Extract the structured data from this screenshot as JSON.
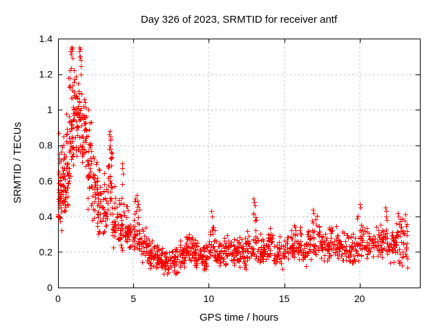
{
  "window": {
    "background": "#ffffff"
  },
  "chart_data": {
    "type": "scatter",
    "title": "Day 326 of 2023, SRMTID for receiver antf",
    "xlabel": "GPS time / hours",
    "ylabel": "SRMTID / TECUs",
    "xlim": [
      0,
      24
    ],
    "ylim": [
      0,
      1.4
    ],
    "xtick_labels": [
      "0",
      "5",
      "10",
      "15",
      "20"
    ],
    "xtick_values": [
      0,
      5,
      10,
      15,
      20
    ],
    "ytick_labels": [
      "0",
      "0.2",
      "0.4",
      "0.6",
      "0.8",
      "1",
      "1.2",
      "1.4"
    ],
    "ytick_values": [
      0,
      0.2,
      0.4,
      0.6,
      0.8,
      1.0,
      1.2,
      1.4
    ],
    "grid": true,
    "legend": "none",
    "marker": "plus-cross",
    "marker_color": "#ff0000",
    "grid_color": "#b4b4b4",
    "axis_color": "#000000",
    "x_data_max": 23.2,
    "y_data_max": 1.36,
    "y_data_min": 0.05,
    "density_bins_format": "[t_start_hours, t_end_hours, point_count, y_min_TECU, y_max_TECU, y_mode_TECU]",
    "density_bins": [
      [
        0.0,
        0.25,
        40,
        0.3,
        0.88,
        0.55
      ],
      [
        0.25,
        0.5,
        36,
        0.36,
        0.96,
        0.58
      ],
      [
        0.5,
        0.75,
        34,
        0.42,
        1.1,
        0.68
      ],
      [
        0.75,
        1.0,
        36,
        0.5,
        1.3,
        0.92
      ],
      [
        1.0,
        1.3,
        34,
        0.65,
        1.25,
        0.98
      ],
      [
        1.3,
        1.55,
        32,
        0.7,
        1.32,
        1.0
      ],
      [
        1.55,
        1.9,
        36,
        0.55,
        1.1,
        0.85
      ],
      [
        1.9,
        2.2,
        32,
        0.42,
        1.0,
        0.7
      ],
      [
        2.2,
        2.6,
        34,
        0.33,
        0.85,
        0.55
      ],
      [
        2.6,
        3.0,
        32,
        0.27,
        0.7,
        0.46
      ],
      [
        3.0,
        3.3,
        26,
        0.28,
        0.66,
        0.45
      ],
      [
        3.3,
        3.6,
        30,
        0.35,
        0.88,
        0.6
      ],
      [
        3.6,
        4.0,
        32,
        0.22,
        0.58,
        0.36
      ],
      [
        4.0,
        4.5,
        36,
        0.2,
        0.55,
        0.34
      ],
      [
        4.5,
        5.0,
        36,
        0.19,
        0.52,
        0.33
      ],
      [
        5.0,
        5.5,
        36,
        0.17,
        0.52,
        0.31
      ],
      [
        5.5,
        6.0,
        36,
        0.12,
        0.36,
        0.23
      ],
      [
        6.0,
        6.5,
        36,
        0.1,
        0.3,
        0.19
      ],
      [
        6.5,
        7.0,
        36,
        0.08,
        0.26,
        0.16
      ],
      [
        7.0,
        7.5,
        36,
        0.05,
        0.22,
        0.14
      ],
      [
        7.5,
        8.0,
        36,
        0.06,
        0.24,
        0.15
      ],
      [
        8.0,
        8.5,
        36,
        0.1,
        0.29,
        0.19
      ],
      [
        8.5,
        9.0,
        36,
        0.12,
        0.33,
        0.22
      ],
      [
        9.0,
        9.5,
        36,
        0.1,
        0.3,
        0.2
      ],
      [
        9.5,
        10.0,
        36,
        0.09,
        0.26,
        0.17
      ],
      [
        10.0,
        10.4,
        26,
        0.14,
        0.41,
        0.24
      ],
      [
        10.4,
        11.0,
        36,
        0.1,
        0.28,
        0.18
      ],
      [
        11.0,
        11.5,
        34,
        0.12,
        0.3,
        0.21
      ],
      [
        11.5,
        12.0,
        34,
        0.1,
        0.32,
        0.21
      ],
      [
        12.0,
        12.5,
        34,
        0.09,
        0.3,
        0.19
      ],
      [
        12.5,
        12.9,
        24,
        0.12,
        0.35,
        0.22
      ],
      [
        12.9,
        13.2,
        18,
        0.15,
        0.47,
        0.28
      ],
      [
        13.2,
        13.8,
        36,
        0.12,
        0.32,
        0.21
      ],
      [
        13.8,
        14.3,
        32,
        0.13,
        0.35,
        0.23
      ],
      [
        14.3,
        15.0,
        40,
        0.1,
        0.3,
        0.19
      ],
      [
        15.0,
        15.6,
        36,
        0.12,
        0.33,
        0.22
      ],
      [
        15.6,
        16.2,
        36,
        0.13,
        0.38,
        0.25
      ],
      [
        16.2,
        16.8,
        36,
        0.12,
        0.35,
        0.23
      ],
      [
        16.8,
        17.4,
        36,
        0.14,
        0.42,
        0.26
      ],
      [
        17.4,
        18.0,
        36,
        0.14,
        0.35,
        0.24
      ],
      [
        18.0,
        18.6,
        36,
        0.15,
        0.36,
        0.25
      ],
      [
        18.6,
        19.2,
        36,
        0.13,
        0.34,
        0.23
      ],
      [
        19.2,
        19.8,
        36,
        0.12,
        0.33,
        0.22
      ],
      [
        19.8,
        20.3,
        30,
        0.14,
        0.45,
        0.26
      ],
      [
        20.3,
        21.0,
        36,
        0.13,
        0.35,
        0.23
      ],
      [
        21.0,
        21.5,
        30,
        0.14,
        0.38,
        0.25
      ],
      [
        21.5,
        21.9,
        26,
        0.15,
        0.45,
        0.28
      ],
      [
        21.9,
        22.4,
        32,
        0.13,
        0.36,
        0.24
      ],
      [
        22.4,
        22.8,
        26,
        0.11,
        0.42,
        0.26
      ],
      [
        22.8,
        23.2,
        24,
        0.1,
        0.42,
        0.25
      ]
    ],
    "spike_points_format": "[t_hours, y_TECU] notable individual points",
    "spike_points": [
      [
        0.05,
        0.87
      ],
      [
        0.84,
        1.33
      ],
      [
        0.86,
        1.35
      ],
      [
        0.88,
        1.31
      ],
      [
        0.9,
        1.34
      ],
      [
        0.93,
        1.33
      ],
      [
        0.95,
        1.35
      ],
      [
        0.97,
        1.29
      ],
      [
        0.7,
        1.18
      ],
      [
        0.78,
        1.22
      ],
      [
        1.05,
        1.22
      ],
      [
        1.12,
        1.17
      ],
      [
        2.0,
        1.0
      ],
      [
        1.42,
        1.35
      ],
      [
        1.44,
        1.33
      ],
      [
        1.46,
        1.3
      ],
      [
        1.48,
        1.34
      ],
      [
        1.5,
        1.28
      ],
      [
        1.52,
        1.2
      ],
      [
        3.38,
        0.86
      ],
      [
        3.42,
        0.88
      ],
      [
        3.46,
        0.85
      ],
      [
        3.5,
        0.83
      ],
      [
        3.44,
        0.8
      ],
      [
        4.25,
        0.7
      ],
      [
        4.28,
        0.67
      ],
      [
        4.31,
        0.64
      ],
      [
        4.27,
        0.58
      ],
      [
        5.15,
        0.5
      ],
      [
        5.2,
        0.52
      ],
      [
        5.25,
        0.49
      ],
      [
        5.3,
        0.47
      ],
      [
        10.15,
        0.43
      ],
      [
        10.2,
        0.4
      ],
      [
        12.95,
        0.5
      ],
      [
        13.0,
        0.48
      ],
      [
        13.04,
        0.46
      ],
      [
        16.9,
        0.44
      ],
      [
        16.95,
        0.42
      ],
      [
        20.0,
        0.47
      ],
      [
        20.06,
        0.45
      ],
      [
        21.7,
        0.45
      ],
      [
        21.76,
        0.43
      ],
      [
        22.55,
        0.42
      ],
      [
        22.6,
        0.4
      ],
      [
        23.05,
        0.41
      ]
    ]
  }
}
